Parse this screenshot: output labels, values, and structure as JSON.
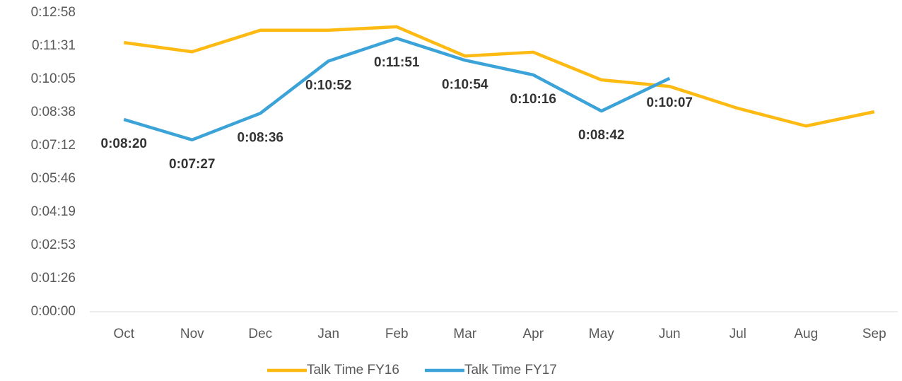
{
  "chart_data": {
    "type": "line",
    "categories": [
      "Oct",
      "Nov",
      "Dec",
      "Jan",
      "Feb",
      "Mar",
      "Apr",
      "May",
      "Jun",
      "Jul",
      "Aug",
      "Sep"
    ],
    "series": [
      {
        "name": "Talk Time FY16",
        "color": "#FDBA12",
        "values": [
          700,
          676,
          732,
          732,
          741,
          665,
          675,
          603,
          586,
          529,
          483,
          520
        ]
      },
      {
        "name": "Talk Time FY17",
        "color": "#3CA3D8",
        "values": [
          500,
          447,
          516,
          652,
          711,
          654,
          616,
          522,
          607,
          null,
          null,
          null
        ],
        "value_labels": [
          "0:08:20",
          "0:07:27",
          "0:08:36",
          "0:10:52",
          "0:11:51",
          "0:10:54",
          "0:10:16",
          "0:08:42",
          "0:10:07",
          null,
          null,
          null
        ]
      }
    ],
    "ylim": [
      0,
      777.6
    ],
    "yticks": [
      {
        "value": 0,
        "label": "0:00:00"
      },
      {
        "value": 86.4,
        "label": "0:01:26"
      },
      {
        "value": 172.8,
        "label": "0:02:53"
      },
      {
        "value": 259.2,
        "label": "0:04:19"
      },
      {
        "value": 345.6,
        "label": "0:05:46"
      },
      {
        "value": 432,
        "label": "0:07:12"
      },
      {
        "value": 518.4,
        "label": "0:08:38"
      },
      {
        "value": 604.8,
        "label": "0:10:05"
      },
      {
        "value": 691.2,
        "label": "0:11:31"
      },
      {
        "value": 777.6,
        "label": "0:12:58"
      }
    ],
    "grid": false,
    "legend": "bottom"
  }
}
